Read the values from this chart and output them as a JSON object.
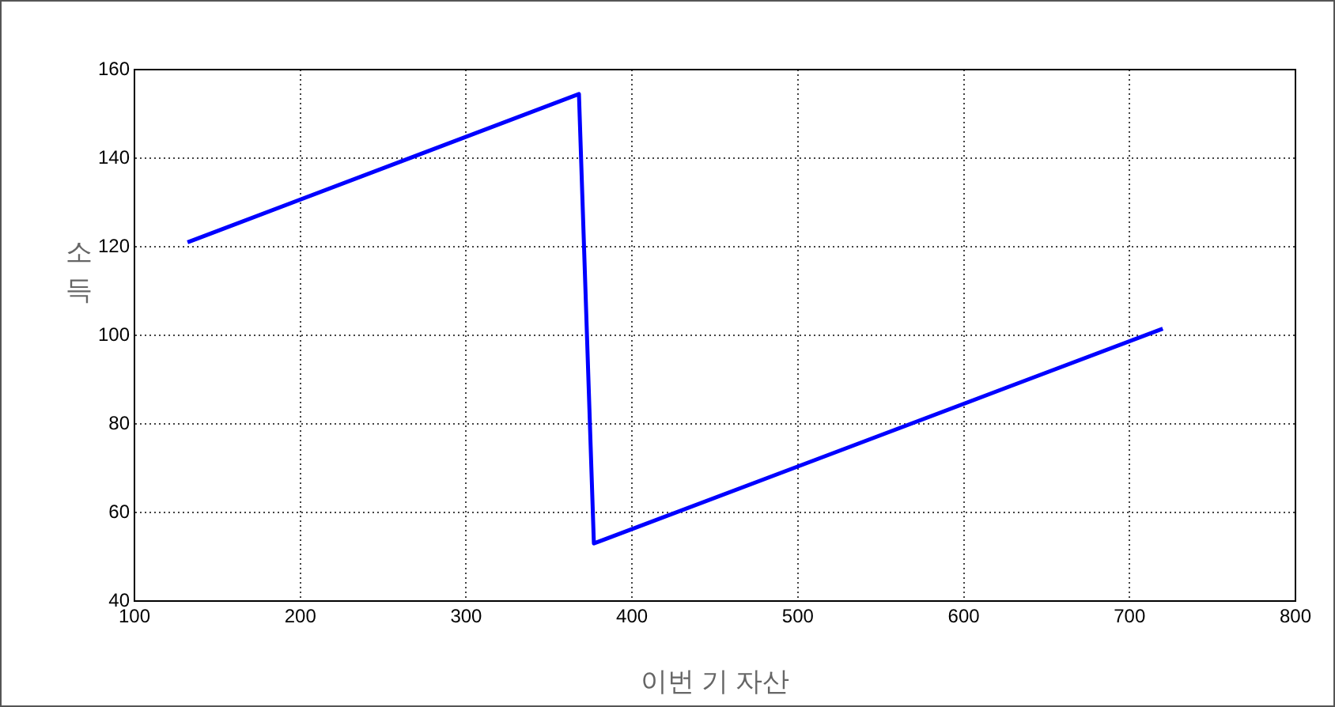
{
  "chart_data": {
    "type": "line",
    "xlabel": "이번 기 자산",
    "ylabel": "소득",
    "x": [
      132,
      368,
      377,
      720
    ],
    "series": [
      {
        "color": "#0000ff",
        "values": [
          121,
          154.5,
          53,
          101.5
        ]
      }
    ],
    "xlim": [
      100,
      800
    ],
    "xticks": [
      100,
      200,
      300,
      400,
      500,
      600,
      700,
      800
    ],
    "ylim": [
      40,
      160
    ],
    "yticks": [
      40,
      60,
      80,
      100,
      120,
      140,
      160
    ],
    "grid": true,
    "legend": false,
    "marker": "none",
    "line_style": "solid"
  }
}
